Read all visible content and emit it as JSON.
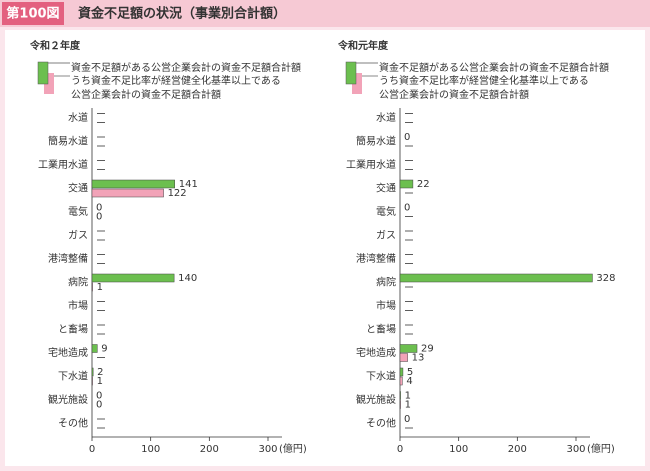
{
  "header": {
    "figure_number": "第100図",
    "title": "資金不足額の状況（事業別合計額）"
  },
  "chart_data": [
    {
      "type": "bar",
      "title": "令和２年度",
      "categories": [
        "水道",
        "簡易水道",
        "工業用水道",
        "交通",
        "電気",
        "ガス",
        "港湾整備",
        "病院",
        "市場",
        "と畜場",
        "宅地造成",
        "下水道",
        "観光施設",
        "その他"
      ],
      "series": [
        {
          "name": "資金不足額がある公営企業会計の資金不足額合計額",
          "color": "#6cbf4f",
          "values": [
            null,
            null,
            null,
            141,
            0,
            null,
            null,
            140,
            null,
            null,
            9,
            2,
            0,
            null
          ]
        },
        {
          "name": "うち資金不足比率が経営健全化基準以上である公営企業会計の資金不足額合計額",
          "color": "#f2a3b8",
          "values": [
            null,
            null,
            null,
            122,
            0,
            null,
            null,
            1,
            null,
            null,
            null,
            1,
            0,
            null
          ]
        }
      ],
      "xlim": [
        0,
        300
      ],
      "xticks": [
        0,
        100,
        200,
        300
      ],
      "x_unit": "(億円)"
    },
    {
      "type": "bar",
      "title": "令和元年度",
      "categories": [
        "水道",
        "簡易水道",
        "工業用水道",
        "交通",
        "電気",
        "ガス",
        "港湾整備",
        "病院",
        "市場",
        "と畜場",
        "宅地造成",
        "下水道",
        "観光施設",
        "その他"
      ],
      "series": [
        {
          "name": "資金不足額がある公営企業会計の資金不足額合計額",
          "color": "#6cbf4f",
          "values": [
            null,
            0,
            null,
            22,
            0,
            null,
            null,
            328,
            null,
            null,
            29,
            5,
            1,
            0
          ]
        },
        {
          "name": "うち資金不足比率が経営健全化基準以上である公営企業会計の資金不足額合計額",
          "color": "#f2a3b8",
          "values": [
            null,
            null,
            null,
            null,
            null,
            null,
            null,
            null,
            null,
            null,
            13,
            4,
            1,
            null
          ]
        }
      ],
      "xlim": [
        0,
        300
      ],
      "xticks": [
        0,
        100,
        200,
        300
      ],
      "x_unit": "(億円)"
    }
  ]
}
